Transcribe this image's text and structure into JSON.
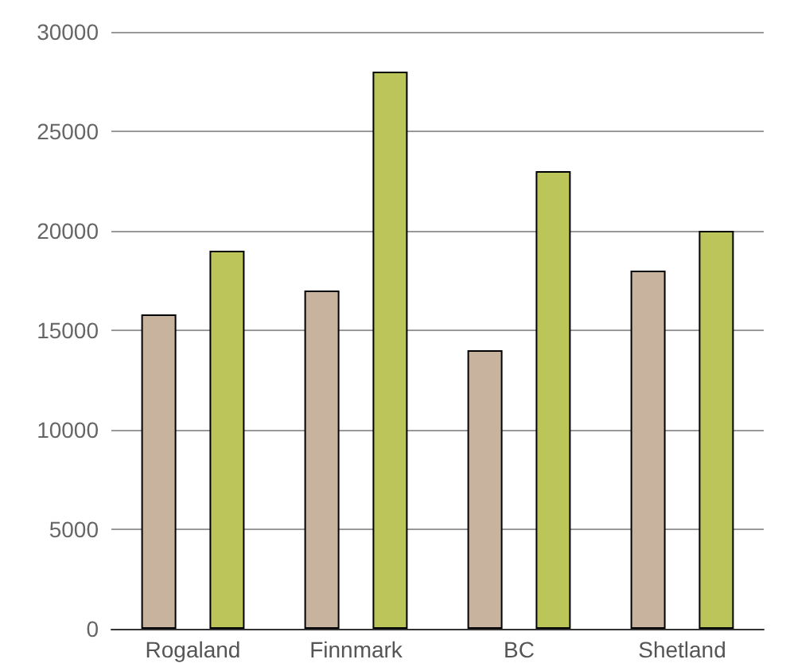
{
  "chart_data": {
    "type": "bar",
    "categories": [
      "Rogaland",
      "Finnmark",
      "BC",
      "Shetland"
    ],
    "series": [
      {
        "color": "#c8b39e",
        "values": [
          15800,
          17000,
          14000,
          18000
        ]
      },
      {
        "color": "#bbc55a",
        "values": [
          19000,
          28000,
          23000,
          20000
        ]
      }
    ],
    "ylim": [
      0,
      30000
    ],
    "yticks": [
      0,
      5000,
      10000,
      15000,
      20000,
      25000,
      30000
    ],
    "grid": "y"
  }
}
